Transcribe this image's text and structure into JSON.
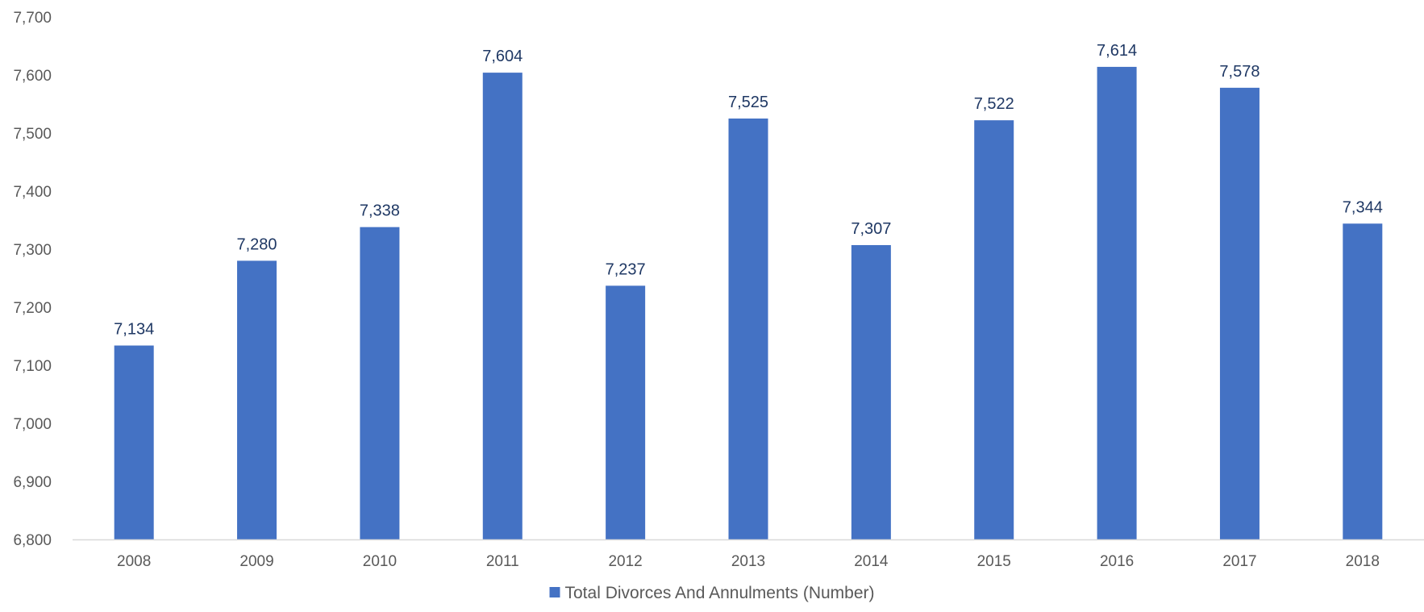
{
  "chart_data": {
    "type": "bar",
    "title": "",
    "xlabel": "",
    "ylabel": "",
    "categories": [
      "2008",
      "2009",
      "2010",
      "2011",
      "2012",
      "2013",
      "2014",
      "2015",
      "2016",
      "2017",
      "2018"
    ],
    "series": [
      {
        "name": "Total Divorces And Annulments (Number)",
        "values": [
          7134,
          7280,
          7338,
          7604,
          7237,
          7525,
          7307,
          7522,
          7614,
          7578,
          7344
        ],
        "color": "#4472c4"
      }
    ],
    "data_labels": [
      "7,134",
      "7,280",
      "7,338",
      "7,604",
      "7,237",
      "7,525",
      "7,307",
      "7,522",
      "7,614",
      "7,578",
      "7,344"
    ],
    "ylim": [
      6800,
      7700
    ],
    "y_ticks": [
      6800,
      6900,
      7000,
      7100,
      7200,
      7300,
      7400,
      7500,
      7600,
      7700
    ],
    "y_tick_labels": [
      "6,800",
      "6,900",
      "7,000",
      "7,100",
      "7,200",
      "7,300",
      "7,400",
      "7,500",
      "7,600",
      "7,700"
    ],
    "grid": false,
    "legend_position": "bottom-center",
    "colors": {
      "bar": "#4472c4",
      "axis": "#d9d9d9",
      "tick_text": "#595959",
      "data_label_text": "#1f3864"
    }
  }
}
